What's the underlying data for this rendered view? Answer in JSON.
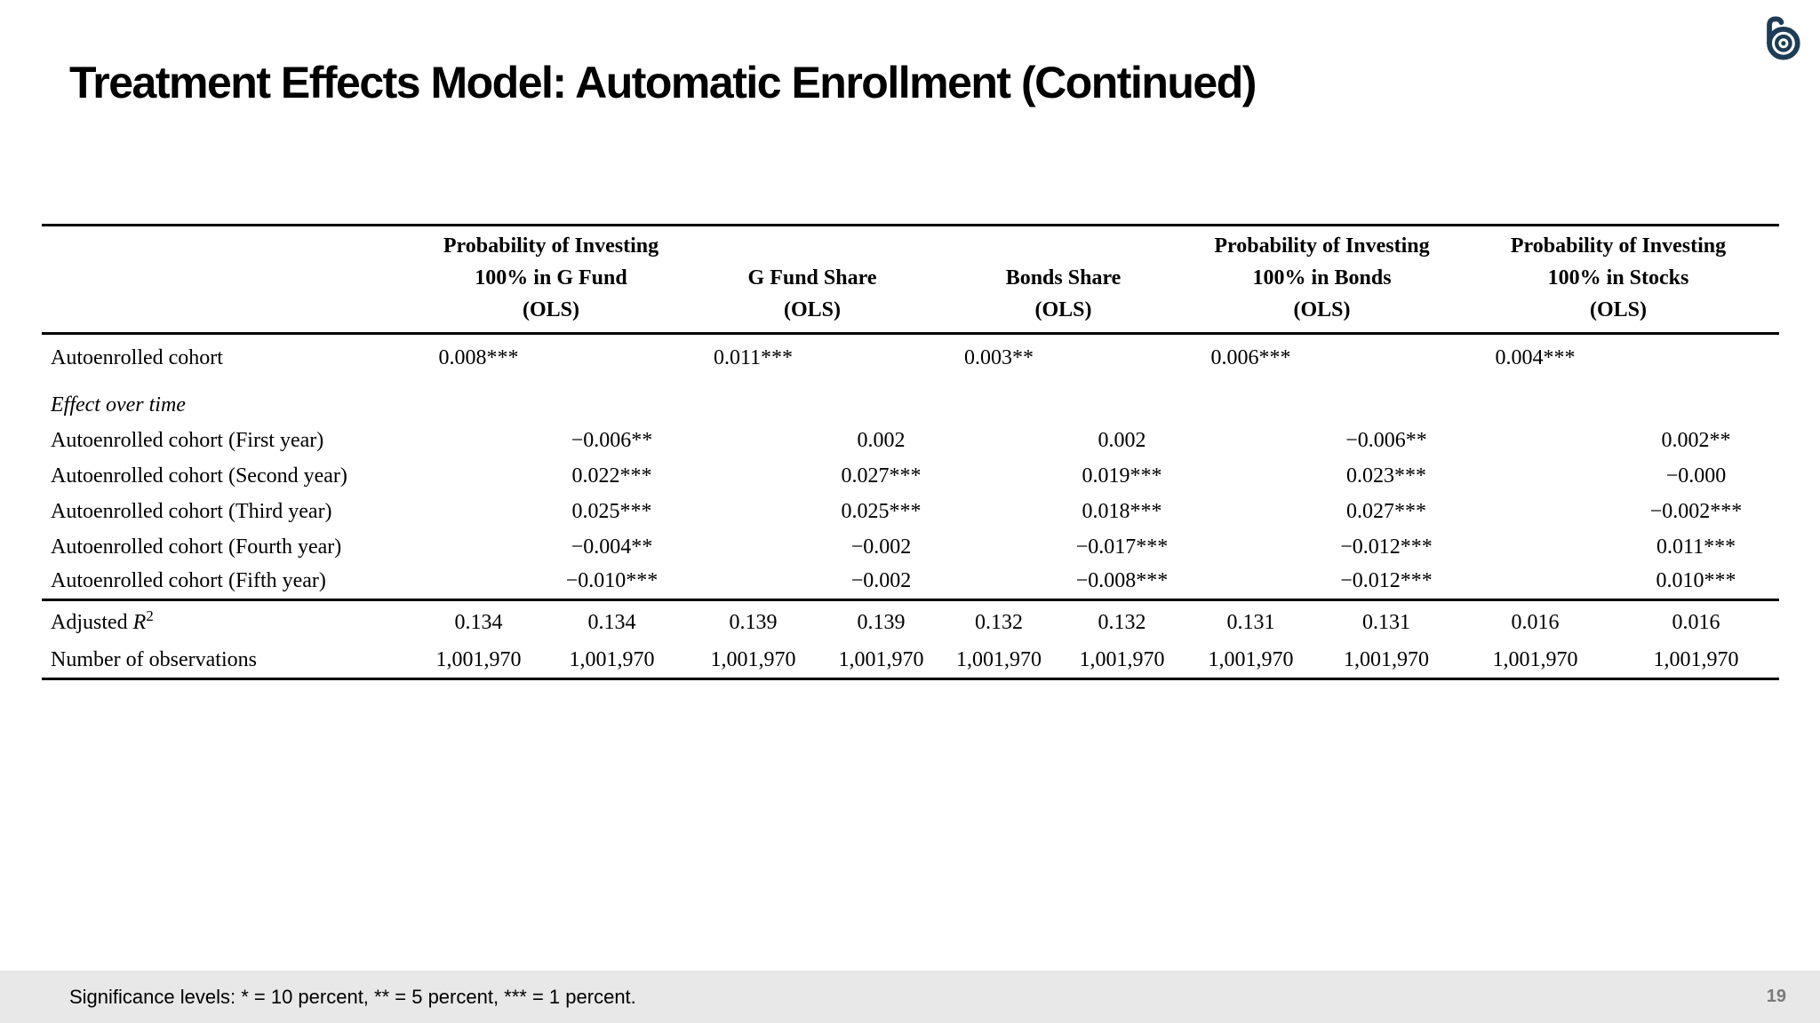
{
  "title": "Treatment Effects Model: Automatic Enrollment (Continued)",
  "logo": {
    "icon": "b-spiral-logo",
    "color": "#1e3c55"
  },
  "colors": {
    "text": "#000000",
    "rule": "#000000",
    "footer_bg": "#e8e8e8",
    "page_number": "#7a7a7a",
    "logo": "#1e3c55"
  },
  "table": {
    "column_groups": [
      {
        "lines": [
          "Probability of Investing",
          "100% in G Fund",
          "(OLS)"
        ]
      },
      {
        "lines": [
          "G Fund Share",
          "(OLS)"
        ]
      },
      {
        "lines": [
          "Bonds Share",
          "(OLS)"
        ]
      },
      {
        "lines": [
          "Probability of Investing",
          "100% in Bonds",
          "(OLS)"
        ]
      },
      {
        "lines": [
          "Probability of Investing",
          "100% in Stocks",
          "(OLS)"
        ]
      }
    ],
    "rows": [
      {
        "label": "Autoenrolled cohort",
        "cells": [
          "0.008***",
          "",
          "0.011***",
          "",
          "0.003**",
          "",
          "0.006***",
          "",
          "0.004***",
          ""
        ]
      },
      {
        "label": "Effect over time",
        "italic": true,
        "section": true,
        "cells": [
          "",
          "",
          "",
          "",
          "",
          "",
          "",
          "",
          "",
          ""
        ]
      },
      {
        "label": "Autoenrolled cohort (First year)",
        "cells": [
          "",
          "−0.006**",
          "",
          "0.002",
          "",
          "0.002",
          "",
          "−0.006**",
          "",
          "0.002**"
        ]
      },
      {
        "label": "Autoenrolled cohort (Second year)",
        "cells": [
          "",
          "0.022***",
          "",
          "0.027***",
          "",
          "0.019***",
          "",
          "0.023***",
          "",
          "−0.000"
        ]
      },
      {
        "label": "Autoenrolled cohort (Third year)",
        "cells": [
          "",
          "0.025***",
          "",
          "0.025***",
          "",
          "0.018***",
          "",
          "0.027***",
          "",
          "−0.002***"
        ]
      },
      {
        "label": "Autoenrolled cohort (Fourth year)",
        "cells": [
          "",
          "−0.004**",
          "",
          "−0.002",
          "",
          "−0.017***",
          "",
          "−0.012***",
          "",
          "0.011***"
        ]
      },
      {
        "label": "Autoenrolled cohort (Fifth year)",
        "rule_after": true,
        "cells": [
          "",
          "−0.010***",
          "",
          "−0.002",
          "",
          "−0.008***",
          "",
          "−0.012***",
          "",
          "0.010***"
        ]
      },
      {
        "label_parts": [
          {
            "text": "Adjusted "
          },
          {
            "text": "R",
            "italic": true
          },
          {
            "text": "2",
            "sup": true
          }
        ],
        "adjusted": true,
        "cells": [
          "0.134",
          "0.134",
          "0.139",
          "0.139",
          "0.132",
          "0.132",
          "0.131",
          "0.131",
          "0.016",
          "0.016"
        ]
      },
      {
        "label": "Number of observations",
        "last": true,
        "cells": [
          "1,001,970",
          "1,001,970",
          "1,001,970",
          "1,001,970",
          "1,001,970",
          "1,001,970",
          "1,001,970",
          "1,001,970",
          "1,001,970",
          "1,001,970"
        ]
      }
    ]
  },
  "footer": {
    "note": "Significance levels: * = 10 percent, ** = 5 percent, *** = 1 percent.",
    "page_number": "19"
  }
}
